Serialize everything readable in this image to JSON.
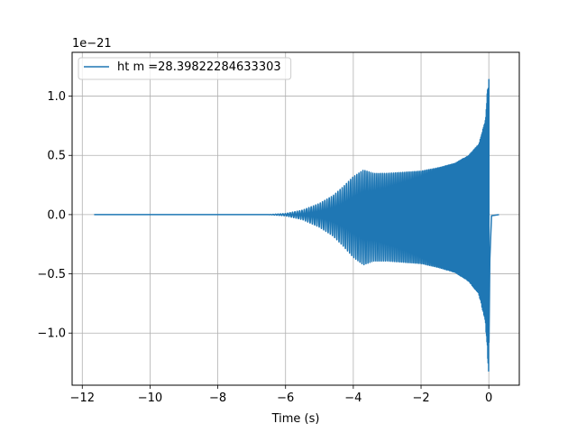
{
  "chart_data": {
    "type": "line",
    "title": "",
    "xlabel": "Time (s)",
    "ylabel": "",
    "y_offset_label": "1e−21",
    "xlim": [
      -12.3,
      0.9
    ],
    "ylim": [
      -1.44,
      1.37
    ],
    "x_ticks": [
      -12,
      -10,
      -8,
      -6,
      -4,
      -2,
      0
    ],
    "x_tick_labels": [
      "−12",
      "−10",
      "−8",
      "−6",
      "−4",
      "−2",
      "0"
    ],
    "y_ticks": [
      -1.0,
      -0.5,
      0.0,
      0.5,
      1.0
    ],
    "y_tick_labels": [
      "−1.0",
      "−0.5",
      "0.0",
      "0.5",
      "1.0"
    ],
    "grid": true,
    "legend_position": "top-left",
    "series": [
      {
        "name": "ht m =28.39822284633303",
        "color": "#1f77b4",
        "x": [
          -11.65,
          -6.5,
          -6.0,
          -5.5,
          -5.0,
          -4.6,
          -4.3,
          -4.0,
          -3.7,
          -3.4,
          -3.0,
          -2.5,
          -2.0,
          -1.5,
          -1.0,
          -0.6,
          -0.3,
          -0.1,
          0.0,
          0.03,
          0.08,
          0.3
        ],
        "envelope": [
          0.0,
          0.0,
          0.01,
          0.04,
          0.1,
          0.17,
          0.25,
          0.34,
          0.4,
          0.37,
          0.37,
          0.38,
          0.39,
          0.42,
          0.46,
          0.53,
          0.63,
          0.85,
          1.3,
          0.4,
          0.01,
          0.0
        ]
      }
    ]
  }
}
